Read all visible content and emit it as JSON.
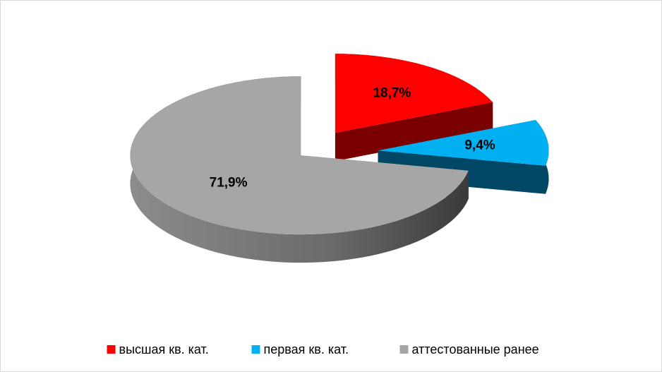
{
  "chart_data": {
    "type": "pie",
    "categories": [
      "высшая кв. кат.",
      "первая кв. кат.",
      "аттестованные ранее"
    ],
    "values": [
      18.7,
      9.4,
      71.9
    ],
    "value_labels": [
      "18,7%",
      "9,4%",
      "71,9%"
    ],
    "colors": [
      "#ff0000",
      "#00b0f0",
      "#a6a6a6"
    ],
    "legend": "bottom"
  }
}
